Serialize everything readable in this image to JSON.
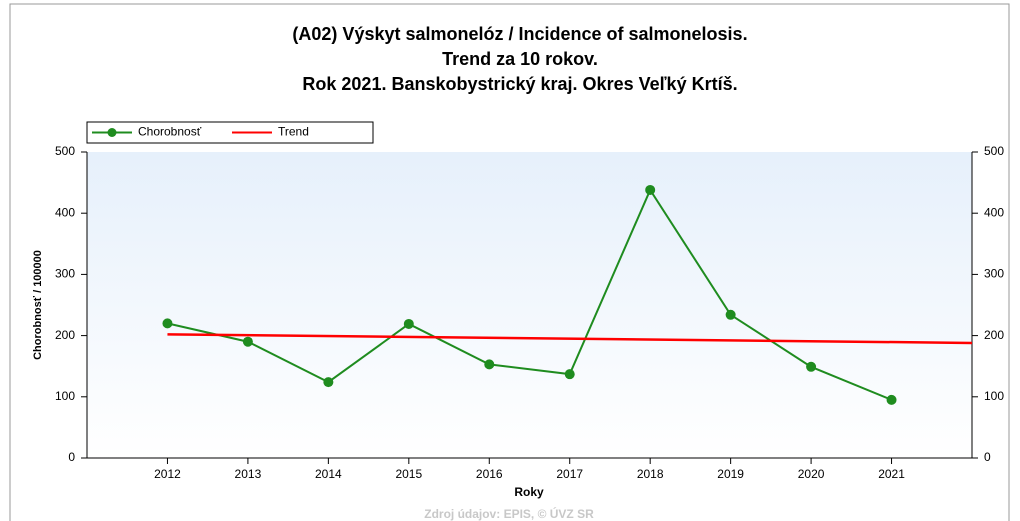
{
  "chart_data": {
    "type": "line",
    "title": [
      "(A02) Výskyt salmonelóz / Incidence of salmonelosis.",
      "Trend za 10 rokov.",
      "Rok 2021. Banskobystrický kraj. Okres Veľký Krtíš."
    ],
    "x": [
      2012,
      2013,
      2014,
      2015,
      2016,
      2017,
      2018,
      2019,
      2020,
      2021
    ],
    "xlim": [
      2011,
      2022
    ],
    "series": [
      {
        "name": "Chorobnosť",
        "color": "#1f8c1f",
        "values": [
          220,
          190,
          124,
          219,
          153,
          137,
          438,
          234,
          149,
          95
        ]
      },
      {
        "name": "Trend",
        "color": "#ff0000",
        "x": [
          2012,
          2022
        ],
        "values": [
          202,
          188
        ]
      }
    ],
    "ylim": [
      0,
      500
    ],
    "yticks": [
      0,
      100,
      200,
      300,
      400,
      500
    ],
    "y2lim": [
      0,
      500
    ],
    "y2ticks": [
      0,
      100,
      200,
      300,
      400,
      500
    ],
    "ylabel": "Chorobnosť / 100000",
    "xlabel": "Roky",
    "source": "Zdroj údajov: EPIS, © ÚVZ SR"
  }
}
